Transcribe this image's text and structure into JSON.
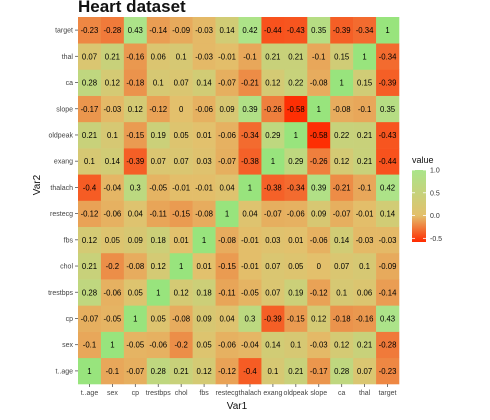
{
  "chart_data": {
    "type": "heatmap",
    "title": "Heart dataset",
    "xlabel": "Var1",
    "ylabel": "Var2",
    "x_categories": [
      "age",
      "sex",
      "cp",
      "trestbps",
      "chol",
      "fbs",
      "restecg",
      "thalach",
      "exang",
      "oldpeak",
      "slope",
      "ca",
      "thal",
      "target"
    ],
    "x_tick_labels": [
      "t..age",
      "sex",
      "cp",
      "trestbps",
      "chol",
      "fbs",
      "restecg",
      "thalach",
      "exang",
      "oldpeak",
      "slope",
      "ca",
      "thal",
      "target"
    ],
    "y_categories": [
      "age",
      "sex",
      "cp",
      "trestbps",
      "chol",
      "fbs",
      "restecg",
      "thalach",
      "exang",
      "oldpeak",
      "slope",
      "ca",
      "thal",
      "target"
    ],
    "y_tick_labels": [
      "t..age",
      "sex",
      "cp",
      "trestbps",
      "chol",
      "fbs",
      "restecg",
      "thalach",
      "exang",
      "oldpeak",
      "slope",
      "ca",
      "thal",
      "target"
    ],
    "matrix": [
      [
        1,
        -0.1,
        -0.07,
        0.28,
        0.21,
        0.12,
        -0.12,
        -0.4,
        0.1,
        0.21,
        -0.17,
        0.28,
        0.07,
        -0.23
      ],
      [
        -0.1,
        1,
        -0.05,
        -0.06,
        -0.2,
        0.05,
        -0.06,
        -0.04,
        0.14,
        0.1,
        -0.03,
        0.12,
        0.21,
        -0.28
      ],
      [
        -0.07,
        -0.05,
        1,
        0.05,
        -0.08,
        0.09,
        0.04,
        0.3,
        -0.39,
        -0.15,
        0.12,
        -0.18,
        -0.16,
        0.43
      ],
      [
        0.28,
        -0.06,
        0.05,
        1,
        0.12,
        0.18,
        -0.11,
        -0.05,
        0.07,
        0.19,
        -0.12,
        0.1,
        0.06,
        -0.14
      ],
      [
        0.21,
        -0.2,
        -0.08,
        0.12,
        1,
        0.01,
        -0.15,
        -0.01,
        0.07,
        0.05,
        0,
        0.07,
        0.1,
        -0.09
      ],
      [
        0.12,
        0.05,
        0.09,
        0.18,
        0.01,
        1,
        -0.08,
        -0.01,
        0.03,
        0.01,
        -0.06,
        0.14,
        -0.03,
        -0.03
      ],
      [
        -0.12,
        -0.06,
        0.04,
        -0.11,
        -0.15,
        -0.08,
        1,
        0.04,
        -0.07,
        -0.06,
        0.09,
        -0.07,
        -0.01,
        0.14
      ],
      [
        -0.4,
        -0.04,
        0.3,
        -0.05,
        -0.01,
        -0.01,
        0.04,
        1,
        -0.38,
        -0.34,
        0.39,
        -0.21,
        -0.1,
        0.42
      ],
      [
        0.1,
        0.14,
        -0.39,
        0.07,
        0.07,
        0.03,
        -0.07,
        -0.38,
        1,
        0.29,
        -0.26,
        0.12,
        0.21,
        -0.44
      ],
      [
        0.21,
        0.1,
        -0.15,
        0.19,
        0.05,
        0.01,
        -0.06,
        -0.34,
        0.29,
        1,
        -0.58,
        0.22,
        0.21,
        -0.43
      ],
      [
        -0.17,
        -0.03,
        0.12,
        -0.12,
        0,
        -0.06,
        0.09,
        0.39,
        -0.26,
        -0.58,
        1,
        -0.08,
        -0.1,
        0.35
      ],
      [
        0.28,
        0.12,
        -0.18,
        0.1,
        0.07,
        0.14,
        -0.07,
        -0.21,
        0.12,
        0.22,
        -0.08,
        1,
        0.15,
        -0.39
      ],
      [
        0.07,
        0.21,
        -0.16,
        0.06,
        0.1,
        -0.03,
        -0.01,
        -0.1,
        0.21,
        0.21,
        -0.1,
        0.15,
        1,
        -0.34
      ],
      [
        -0.23,
        -0.28,
        0.43,
        -0.14,
        -0.09,
        -0.03,
        0.14,
        0.42,
        -0.44,
        -0.43,
        0.35,
        -0.39,
        -0.34,
        1
      ]
    ],
    "value_range": [
      -0.58,
      1
    ],
    "colors": {
      "low": "#ff2a00",
      "mid": "#e3c06c",
      "high": "#a9e58a",
      "diagonal": "#98e47d",
      "panel_bg": "#ebebeb"
    },
    "legend": {
      "title": "value",
      "ticks": [
        1.0,
        0.5,
        0.0,
        -0.5
      ],
      "tick_labels": [
        "1.0",
        "0.5",
        "0.0",
        "-0.5"
      ],
      "position": "right"
    },
    "grid": false
  }
}
